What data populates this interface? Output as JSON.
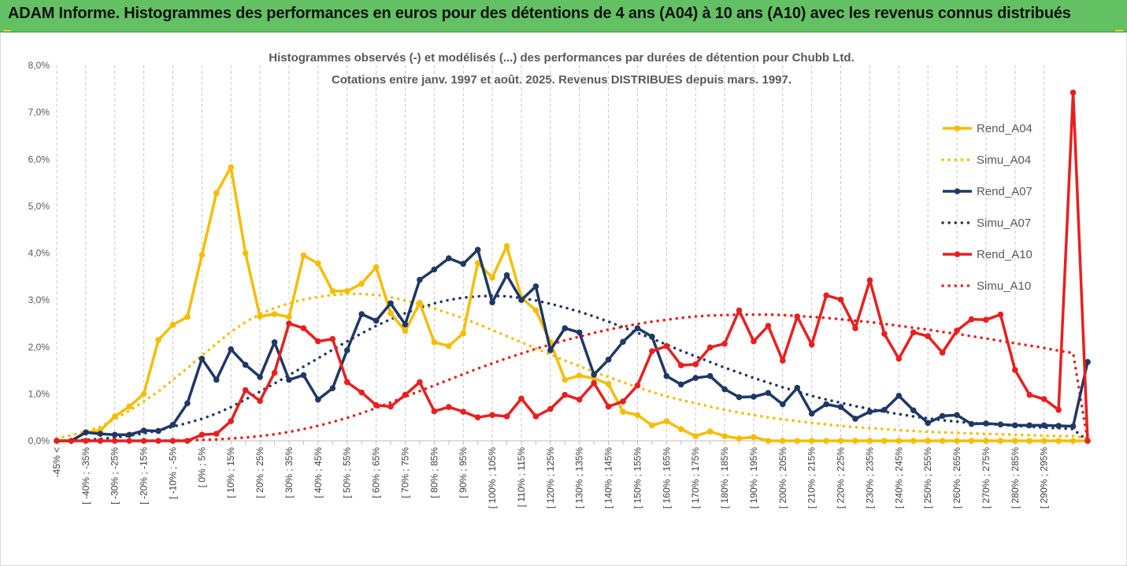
{
  "header": {
    "title": "ADAM Informe. Histogrammes des performances en euros pour des détentions de 4 ans (A04) à 10 ans (A10) avec les revenus connus distribués"
  },
  "colors": {
    "header_bg": "#63c163",
    "A04": "#f5bd00",
    "A07": "#1f3864",
    "A10": "#e81f1f"
  },
  "chart_data": {
    "type": "line",
    "title": [
      "Histogrammes observés (-) et modélisés (...) des performances par durées de détention pour Chubb Ltd.",
      "Cotations entre janv. 1997 et août. 2025. Revenus DISTRIBUES depuis mars. 1997."
    ],
    "xlabel": "",
    "ylabel": "",
    "ylim": [
      0,
      8
    ],
    "y_unit": "%",
    "yticks": [
      "0,0%",
      "1,0%",
      "2,0%",
      "3,0%",
      "4,0%",
      "5,0%",
      "6,0%",
      "7,0%",
      "8,0%"
    ],
    "grid": "vertical dashed",
    "legend_position": "right",
    "x_tick_labels": [
      "-45% <",
      "[ -40% ; -35%",
      "[ -30% ; -25%",
      "[ -20% ; -15%",
      "[ -10% ; -5%",
      "[ 0% ; 5%",
      "[ 10% ; 15%",
      "[ 20% ; 25%",
      "[ 30% ; 35%",
      "[ 40% ; 45%",
      "[ 50% ; 55%",
      "[ 60% ; 65%",
      "[ 70% ; 75%",
      "[ 80% ; 85%",
      "[ 90% ; 95%",
      "[ 100% ; 105%",
      "[ 110% ; 115%",
      "[ 120% ; 125%",
      "[ 130% ; 135%",
      "[ 140% ; 145%",
      "[ 150% ; 155%",
      "[ 160% ; 165%",
      "[ 170% ; 175%",
      "[ 180% ; 185%",
      "[ 190% ; 195%",
      "[ 200% ; 205%",
      "[ 210% ; 215%",
      "[ 220% ; 225%",
      "[ 230% ; 235%",
      "[ 240% ; 245%",
      "[ 250% ; 255%",
      "[ 260% ; 265%",
      "[ 270% ; 275%",
      "[ 280% ; 285%",
      "[ 290% ; 295%"
    ],
    "series": [
      {
        "name": "Rend_A04",
        "key": "A04",
        "style": "solid",
        "marker": true,
        "values": [
          0.0,
          0.0,
          0.18,
          0.22,
          0.52,
          0.73,
          1.0,
          2.15,
          2.47,
          2.64,
          3.96,
          5.28,
          5.83,
          4.0,
          2.65,
          2.7,
          2.64,
          3.95,
          3.78,
          3.19,
          3.19,
          3.35,
          3.7,
          2.72,
          2.34,
          2.94,
          2.1,
          2.02,
          2.29,
          3.79,
          3.48,
          4.15,
          3.05,
          2.78,
          2.1,
          1.3,
          1.39,
          1.33,
          1.21,
          0.62,
          0.55,
          0.33,
          0.42,
          0.25,
          0.1,
          0.2,
          0.1,
          0.05,
          0.08,
          0.0,
          0.0,
          0.0,
          0.0,
          0.0,
          0.0,
          0.0,
          0.0,
          0.0,
          0.0,
          0.0,
          0.0,
          0.0,
          0.0,
          0.0,
          0.0,
          0.0,
          0.0,
          0.0,
          0.0,
          0.0,
          0.0,
          0.0
        ]
      },
      {
        "name": "Simu_A04",
        "key": "A04",
        "style": "dotted",
        "marker": false,
        "values": [
          0.05,
          0.12,
          0.2,
          0.3,
          0.46,
          0.64,
          0.84,
          1.05,
          1.3,
          1.55,
          1.82,
          2.07,
          2.32,
          2.53,
          2.7,
          2.83,
          2.93,
          3.01,
          3.07,
          3.11,
          3.13,
          3.13,
          3.11,
          3.06,
          2.99,
          2.91,
          2.82,
          2.72,
          2.61,
          2.49,
          2.36,
          2.23,
          2.1,
          1.97,
          1.84,
          1.71,
          1.59,
          1.47,
          1.36,
          1.25,
          1.14,
          1.04,
          0.95,
          0.87,
          0.8,
          0.73,
          0.66,
          0.6,
          0.55,
          0.5,
          0.46,
          0.42,
          0.38,
          0.35,
          0.32,
          0.29,
          0.27,
          0.25,
          0.23,
          0.21,
          0.19,
          0.18,
          0.17,
          0.16,
          0.15,
          0.14,
          0.13,
          0.12,
          0.11,
          0.1,
          0.1,
          0.05
        ]
      },
      {
        "name": "Rend_A07",
        "key": "A07",
        "style": "solid",
        "marker": true,
        "values": [
          0.0,
          0.0,
          0.18,
          0.15,
          0.13,
          0.13,
          0.22,
          0.21,
          0.34,
          0.8,
          1.75,
          1.3,
          1.95,
          1.62,
          1.36,
          2.1,
          1.3,
          1.4,
          0.88,
          1.12,
          1.93,
          2.7,
          2.56,
          2.93,
          2.48,
          3.43,
          3.65,
          3.89,
          3.77,
          4.07,
          2.95,
          3.53,
          3.0,
          3.29,
          1.93,
          2.4,
          2.31,
          1.41,
          1.73,
          2.11,
          2.4,
          2.22,
          1.38,
          1.2,
          1.34,
          1.38,
          1.1,
          0.93,
          0.94,
          1.02,
          0.78,
          1.13,
          0.58,
          0.78,
          0.72,
          0.47,
          0.62,
          0.66,
          0.96,
          0.65,
          0.38,
          0.53,
          0.55,
          0.36,
          0.37,
          0.35,
          0.33,
          0.33,
          0.33,
          0.32,
          0.31,
          1.68
        ]
      },
      {
        "name": "Simu_A07",
        "key": "A07",
        "style": "dotted",
        "marker": false,
        "values": [
          0.0,
          0.01,
          0.02,
          0.04,
          0.07,
          0.11,
          0.16,
          0.22,
          0.3,
          0.38,
          0.47,
          0.58,
          0.72,
          0.88,
          1.05,
          1.22,
          1.4,
          1.58,
          1.76,
          1.94,
          2.12,
          2.29,
          2.45,
          2.59,
          2.72,
          2.83,
          2.93,
          3.0,
          3.05,
          3.08,
          3.09,
          3.08,
          3.04,
          2.99,
          2.92,
          2.84,
          2.75,
          2.65,
          2.54,
          2.42,
          2.3,
          2.18,
          2.05,
          1.92,
          1.8,
          1.68,
          1.56,
          1.45,
          1.34,
          1.24,
          1.14,
          1.05,
          0.96,
          0.88,
          0.81,
          0.74,
          0.68,
          0.62,
          0.57,
          0.52,
          0.48,
          0.44,
          0.41,
          0.38,
          0.36,
          0.34,
          0.32,
          0.3,
          0.28,
          0.27,
          0.25,
          0.0
        ]
      },
      {
        "name": "Rend_A10",
        "key": "A10",
        "style": "solid",
        "marker": true,
        "values": [
          0.0,
          0.0,
          0.0,
          0.0,
          0.0,
          0.0,
          0.0,
          0.0,
          0.0,
          0.0,
          0.13,
          0.15,
          0.42,
          1.08,
          0.85,
          1.45,
          2.5,
          2.4,
          2.12,
          2.17,
          1.25,
          1.03,
          0.76,
          0.73,
          0.98,
          1.25,
          0.63,
          0.72,
          0.62,
          0.5,
          0.55,
          0.52,
          0.9,
          0.52,
          0.68,
          0.98,
          0.88,
          1.23,
          0.73,
          0.84,
          1.18,
          1.91,
          2.02,
          1.61,
          1.63,
          1.99,
          2.07,
          2.78,
          2.12,
          2.45,
          1.71,
          2.65,
          2.05,
          3.1,
          3.01,
          2.4,
          3.42,
          2.28,
          1.75,
          2.31,
          2.23,
          1.88,
          2.35,
          2.59,
          2.58,
          2.69,
          1.51,
          0.98,
          0.89,
          0.66,
          7.42,
          0.0
        ]
      },
      {
        "name": "Simu_A10",
        "key": "A10",
        "style": "dotted",
        "marker": false,
        "values": [
          0.0,
          0.0,
          0.0,
          0.0,
          0.0,
          0.0,
          0.0,
          0.0,
          0.01,
          0.01,
          0.02,
          0.03,
          0.05,
          0.07,
          0.1,
          0.14,
          0.19,
          0.25,
          0.32,
          0.4,
          0.49,
          0.59,
          0.7,
          0.82,
          0.94,
          1.06,
          1.18,
          1.3,
          1.42,
          1.54,
          1.65,
          1.76,
          1.86,
          1.96,
          2.05,
          2.14,
          2.22,
          2.3,
          2.37,
          2.43,
          2.49,
          2.54,
          2.58,
          2.62,
          2.65,
          2.67,
          2.68,
          2.69,
          2.69,
          2.69,
          2.68,
          2.66,
          2.64,
          2.62,
          2.59,
          2.56,
          2.53,
          2.49,
          2.45,
          2.41,
          2.37,
          2.32,
          2.28,
          2.23,
          2.18,
          2.13,
          2.08,
          2.03,
          1.98,
          1.92,
          1.87,
          0.0
        ]
      }
    ]
  }
}
